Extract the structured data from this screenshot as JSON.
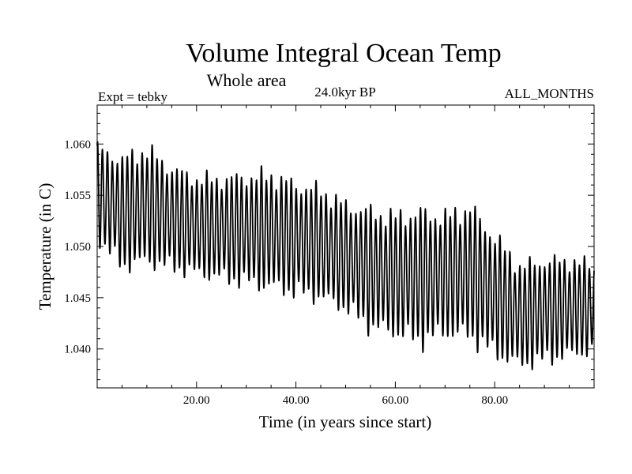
{
  "chart_data": {
    "type": "line",
    "title": "Volume Integral Ocean Temp",
    "subtitle": "Whole area",
    "experiment_label": "Expt = tebky",
    "period_label": "24.0kyr BP",
    "months_label": "ALL_MONTHS",
    "xlabel": "Time (in years since start)",
    "ylabel": "Temperature (in C)",
    "xlim": [
      0,
      100
    ],
    "ylim": [
      1.0362,
      1.0638
    ],
    "x_ticks": [
      20,
      40,
      60,
      80
    ],
    "x_tick_labels": [
      "20.00",
      "40.00",
      "60.00",
      "80.00"
    ],
    "y_ticks": [
      1.04,
      1.045,
      1.05,
      1.055,
      1.06
    ],
    "y_tick_labels": [
      "1.040",
      "1.045",
      "1.050",
      "1.055",
      "1.060"
    ],
    "grid": false,
    "line_color": "#000000",
    "series": [
      {
        "name": "Volume Integral Ocean Temp",
        "description": "annual cycle oscillation (approx. 1 cycle per year) around a declining mean",
        "envelope_x": [
          0,
          5,
          10,
          15,
          20,
          25,
          30,
          35,
          40,
          45,
          50,
          55,
          60,
          65,
          70,
          75,
          80,
          85,
          90,
          95,
          100
        ],
        "envelope_max": [
          1.0605,
          1.0595,
          1.0605,
          1.0585,
          1.0575,
          1.0575,
          1.0578,
          1.058,
          1.057,
          1.0565,
          1.055,
          1.0545,
          1.054,
          1.0545,
          1.054,
          1.055,
          1.052,
          1.049,
          1.0495,
          1.0495,
          1.049
        ],
        "envelope_min": [
          1.05,
          1.047,
          1.0475,
          1.047,
          1.0465,
          1.046,
          1.0455,
          1.045,
          1.0445,
          1.044,
          1.043,
          1.041,
          1.0405,
          1.0395,
          1.0405,
          1.04,
          1.0385,
          1.0375,
          1.038,
          1.0385,
          1.039
        ]
      }
    ]
  }
}
